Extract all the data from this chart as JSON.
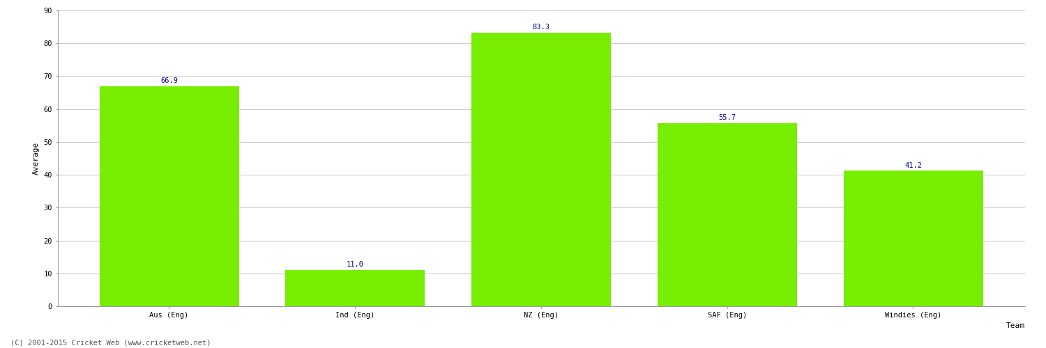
{
  "categories": [
    "Aus (Eng)",
    "Ind (Eng)",
    "NZ (Eng)",
    "SAF (Eng)",
    "Windies (Eng)"
  ],
  "values": [
    66.9,
    11.0,
    83.3,
    55.7,
    41.2
  ],
  "bar_color": "#77ee00",
  "bar_edgecolor": "#77ee00",
  "xlabel": "Team",
  "ylabel": "Average",
  "ylim": [
    0,
    90
  ],
  "yticks": [
    0,
    10,
    20,
    30,
    40,
    50,
    60,
    70,
    80,
    90
  ],
  "label_color": "#000099",
  "label_fontsize": 7.5,
  "axis_label_fontsize": 8,
  "tick_fontsize": 7.5,
  "grid_color": "#cccccc",
  "background_color": "#ffffff",
  "footer_text": "(C) 2001-2015 Cricket Web (www.cricketweb.net)",
  "footer_fontsize": 7.5,
  "footer_color": "#555555"
}
